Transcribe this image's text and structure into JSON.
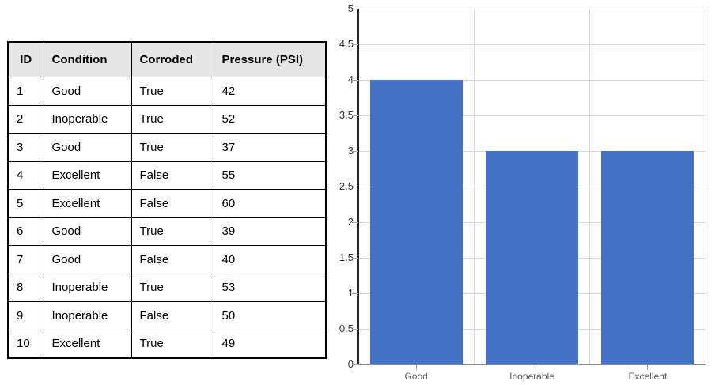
{
  "table": {
    "headers": [
      "ID",
      "Condition",
      "Corroded",
      "Pressure (PSI)"
    ],
    "rows": [
      [
        "1",
        "Good",
        "True",
        "42"
      ],
      [
        "2",
        "Inoperable",
        "True",
        "52"
      ],
      [
        "3",
        "Good",
        "True",
        "37"
      ],
      [
        "4",
        "Excellent",
        "False",
        "55"
      ],
      [
        "5",
        "Excellent",
        "False",
        "60"
      ],
      [
        "6",
        "Good",
        "True",
        "39"
      ],
      [
        "7",
        "Good",
        "False",
        "40"
      ],
      [
        "8",
        "Inoperable",
        "True",
        "53"
      ],
      [
        "9",
        "Inoperable",
        "False",
        "50"
      ],
      [
        "10",
        "Excellent",
        "True",
        "49"
      ]
    ]
  },
  "chart_data": {
    "type": "bar",
    "categories": [
      "Good",
      "Inoperable",
      "Excellent"
    ],
    "values": [
      4,
      3,
      3
    ],
    "title": "",
    "xlabel": "",
    "ylabel": "",
    "ylim": [
      0,
      5
    ],
    "ytick_step": 0.5,
    "yticks": [
      "0",
      "0.5",
      "1",
      "1.5",
      "2",
      "2.5",
      "3",
      "3.5",
      "4",
      "4.5",
      "5"
    ],
    "grid": true,
    "legend_position": "none"
  },
  "colors": {
    "bar_fill": "#4472C4",
    "table_header_bg": "#E7E6E6",
    "grid_line": "#D9D9D9",
    "y_axis_line": "#262626",
    "x_axis_line": "#8C8C8C",
    "y_tick_label": "#333333",
    "x_tick_label": "#595959"
  }
}
